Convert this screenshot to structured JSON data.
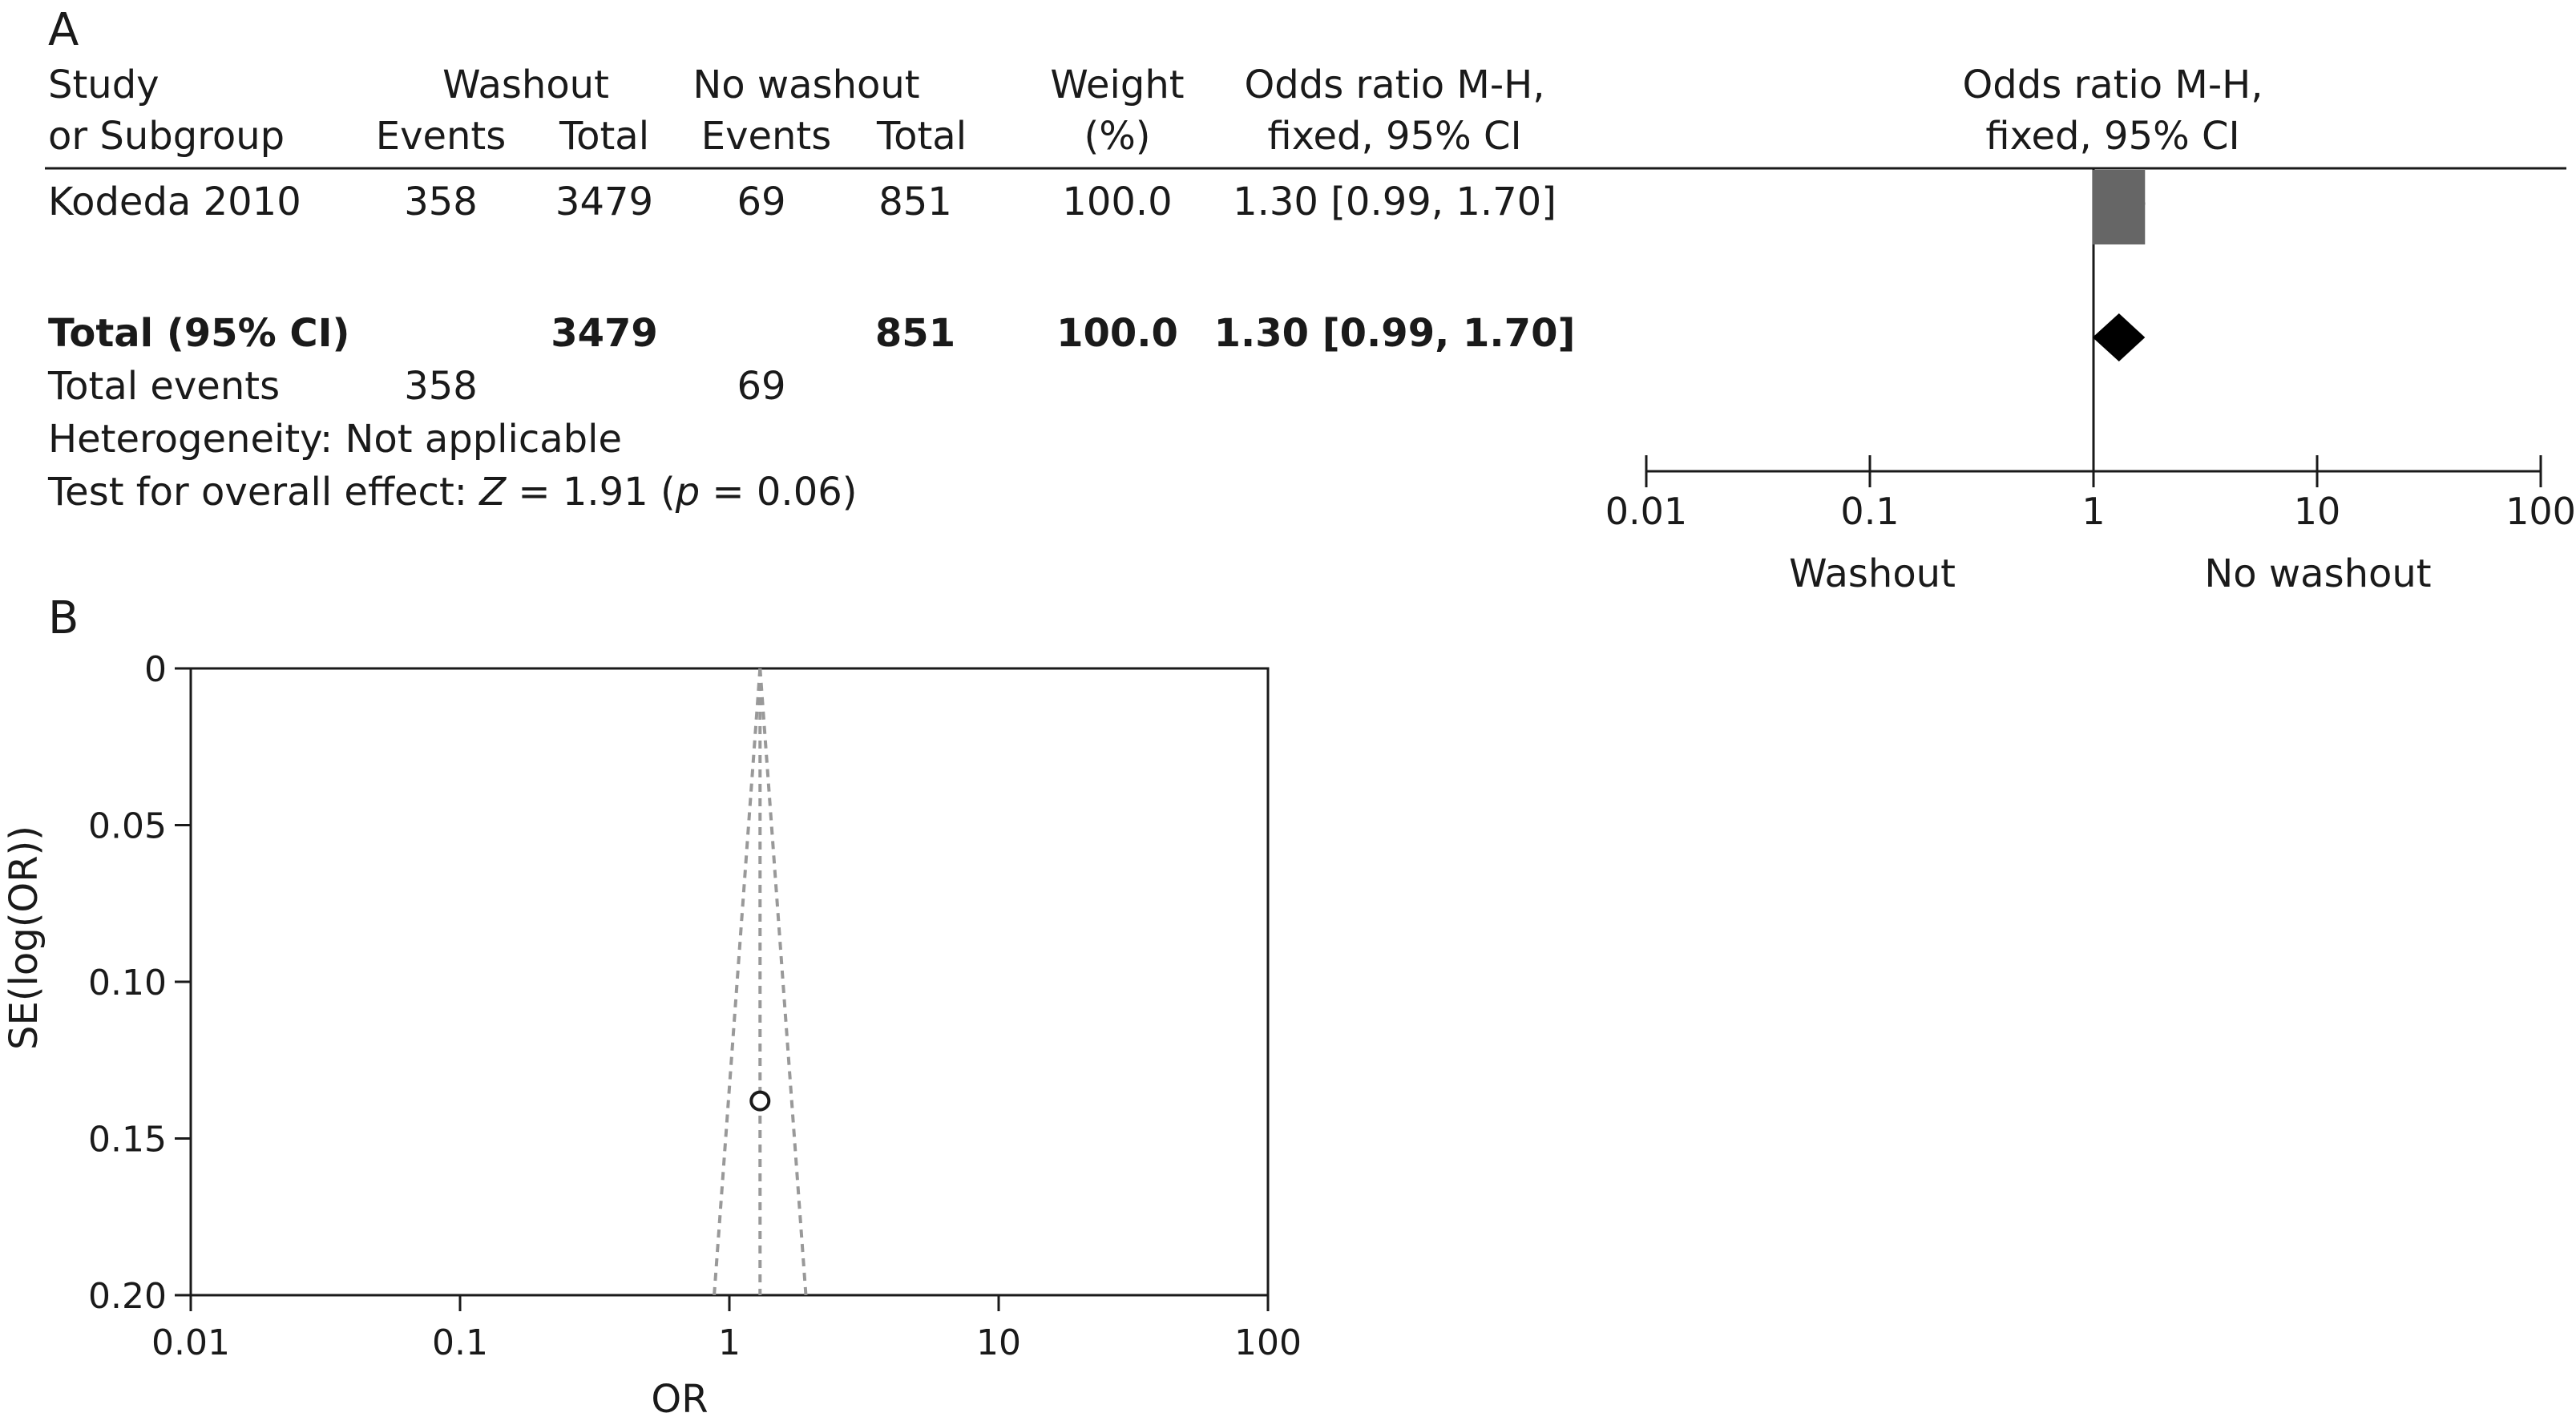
{
  "panel_a": {
    "label": "A",
    "headers": {
      "study_l1": "Study",
      "study_l2": "or Subgroup",
      "group1": "Washout",
      "group2": "No washout",
      "events": "Events",
      "total": "Total",
      "weight_l1": "Weight",
      "weight_l2": "(%)",
      "or_l1": "Odds ratio M-H,",
      "or_l2": "fixed, 95% CI",
      "plot_l1": "Odds ratio M-H,",
      "plot_l2": "fixed, 95% CI"
    },
    "rows": [
      {
        "study": "Kodeda 2010",
        "e1": "358",
        "t1": "3479",
        "e2": "69",
        "t2": "851",
        "weight": "100.0",
        "ci": "1.30 [0.99, 1.70]"
      }
    ],
    "total_row": {
      "label": "Total (95% CI)",
      "t1": "3479",
      "t2": "851",
      "weight": "100.0",
      "ci": "1.30 [0.99, 1.70]"
    },
    "total_events": {
      "label": "Total events",
      "e1": "358",
      "e2": "69"
    },
    "heterogeneity": "Heterogeneity: Not applicable",
    "overall": {
      "prefix": "Test for overall effect: ",
      "z": "Z",
      "mid": " = 1.91 (",
      "p": "p",
      "suffix": " = 0.06)"
    },
    "favours_left": "Washout",
    "favours_right": "No washout"
  },
  "panel_b": {
    "label": "B",
    "xlabel": "OR",
    "ylabel": "SE(log(OR))"
  },
  "chart_data": [
    {
      "type": "forest",
      "scale": "log",
      "xticks": [
        "0.01",
        "0.1",
        "1",
        "10",
        "100"
      ],
      "xtick_values": [
        0.01,
        0.1,
        1,
        10,
        100
      ],
      "studies": [
        {
          "name": "Kodeda 2010",
          "or": 1.3,
          "lower": 0.99,
          "upper": 1.7,
          "weight": 100.0
        }
      ],
      "pooled": {
        "or": 1.3,
        "lower": 0.99,
        "upper": 1.7
      },
      "null_line": 1,
      "colors": {
        "square": "#666666",
        "diamond": "#000000"
      }
    },
    {
      "type": "scatter",
      "xscale": "log",
      "xlim": [
        0.01,
        100
      ],
      "ylim": [
        0,
        0.2
      ],
      "y_inverted": true,
      "xticks": [
        "0.01",
        "0.1",
        "1",
        "10",
        "100"
      ],
      "xtick_values": [
        0.01,
        0.1,
        1,
        10,
        100
      ],
      "yticks": [
        "0",
        "0.05",
        "0.10",
        "0.15",
        "0.20"
      ],
      "ytick_values": [
        0,
        0.05,
        0.1,
        0.15,
        0.2
      ],
      "points": [
        {
          "x": 1.3,
          "y": 0.138
        }
      ],
      "pooled_or": 1.3,
      "funnel_color": "#999999"
    }
  ]
}
